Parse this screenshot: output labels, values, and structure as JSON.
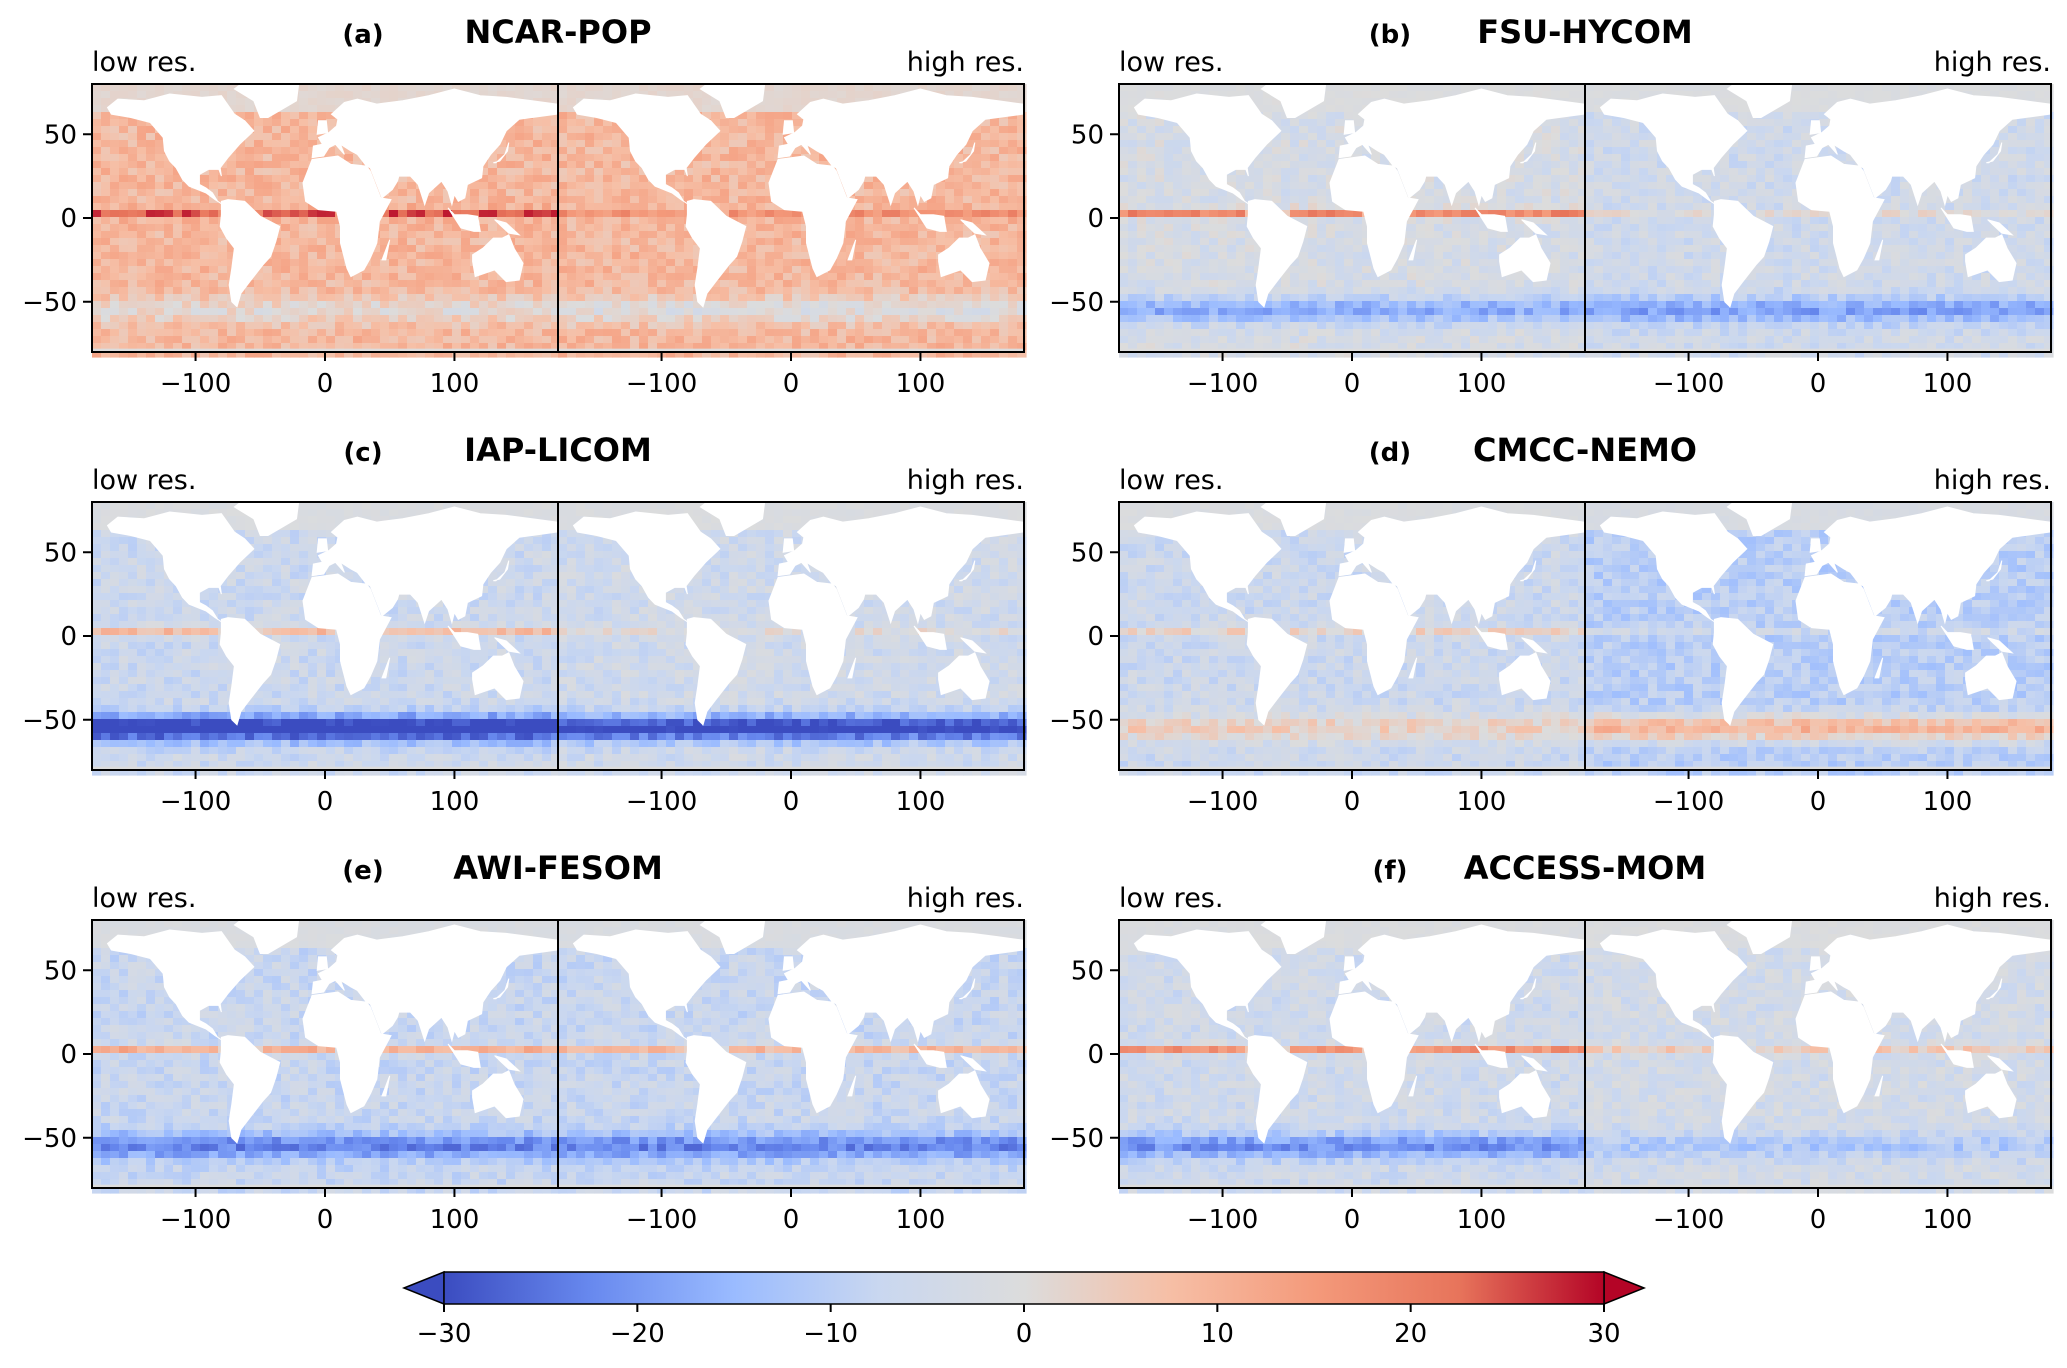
{
  "chart_data": {
    "type": "heatmap",
    "panels": [
      {
        "letter": "(a)",
        "model": "NCAR-POP",
        "left_label": "low res.",
        "right_label": "high res.",
        "low": {
          "bias": 9,
          "eq": 16,
          "so": -8,
          "acc_pos": false
        },
        "high": {
          "bias": 9,
          "eq": 8,
          "so": -10,
          "acc_pos": false
        }
      },
      {
        "letter": "(b)",
        "model": "FSU-HYCOM",
        "left_label": "low res.",
        "right_label": "high res.",
        "low": {
          "bias": -3,
          "eq": 22,
          "so": -14,
          "acc_pos": false
        },
        "high": {
          "bias": -5,
          "eq": 5,
          "so": -14,
          "acc_pos": false
        }
      },
      {
        "letter": "(c)",
        "model": "IAP-LICOM",
        "left_label": "low res.",
        "right_label": "high res.",
        "low": {
          "bias": -6,
          "eq": 14,
          "so": -30,
          "acc_pos": false
        },
        "high": {
          "bias": -5,
          "eq": 5,
          "so": -28,
          "acc_pos": false
        }
      },
      {
        "letter": "(d)",
        "model": "CMCC-NEMO",
        "left_label": "low res.",
        "right_label": "high res.",
        "low": {
          "bias": -6,
          "eq": 9,
          "so": 10,
          "acc_pos": true
        },
        "high": {
          "bias": -10,
          "eq": 4,
          "so": 20,
          "acc_pos": true
        }
      },
      {
        "letter": "(e)",
        "model": "AWI-FESOM",
        "left_label": "low res.",
        "right_label": "high res.",
        "low": {
          "bias": -7,
          "eq": 18,
          "so": -16,
          "acc_pos": false
        },
        "high": {
          "bias": -7,
          "eq": 16,
          "so": -16,
          "acc_pos": false
        }
      },
      {
        "letter": "(f)",
        "model": "ACCESS-MOM",
        "left_label": "low res.",
        "right_label": "high res.",
        "low": {
          "bias": -5,
          "eq": 22,
          "so": -16,
          "acc_pos": false
        },
        "high": {
          "bias": -4,
          "eq": 9,
          "so": -8,
          "acc_pos": false
        }
      }
    ],
    "x_ticks": [
      "−100",
      "0",
      "100"
    ],
    "x_tick_values": [
      -100,
      0,
      100
    ],
    "y_ticks": [
      "50",
      "0",
      "−50"
    ],
    "y_tick_values": [
      50,
      0,
      -50
    ],
    "xlim": [
      -180,
      180
    ],
    "ylim": [
      -80,
      80
    ],
    "colorbar": {
      "range": [
        -30,
        30
      ],
      "ticks": [
        "−30",
        "−20",
        "−10",
        "0",
        "10",
        "20",
        "30"
      ],
      "tick_values": [
        -30,
        -20,
        -10,
        0,
        10,
        20,
        30
      ],
      "colormap": "coolwarm",
      "stops": [
        "#3b4cc0",
        "#6788ee",
        "#9abbff",
        "#c9d7f0",
        "#dcdcdc",
        "#f6bfa6",
        "#f49a7b",
        "#e7745b",
        "#b40426"
      ]
    },
    "land_color": "#ffffff",
    "ice_color": "#dcdcdc"
  }
}
